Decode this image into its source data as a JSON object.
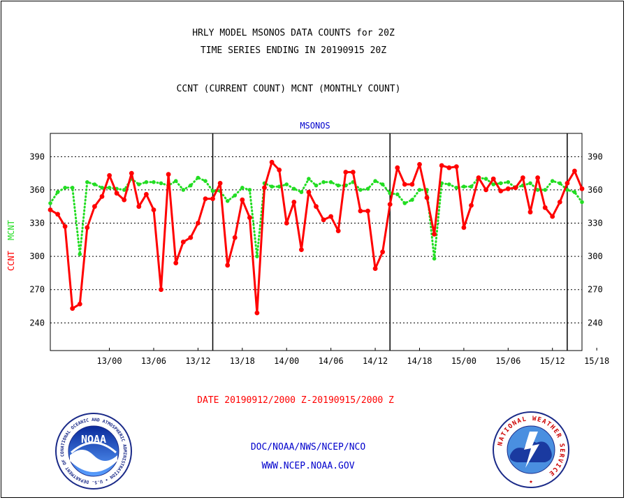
{
  "header": {
    "line1": "HRLY MODEL MSONOS DATA COUNTS for 20Z",
    "line2": "TIME SERIES ENDING IN 20190915 20Z",
    "line3": "CCNT (CURRENT COUNT) MCNT (MONTHLY COUNT)"
  },
  "footer": {
    "date_range": "DATE 20190912/2000 Z-20190915/2000 Z",
    "org": "DOC/NOAA/NWS/NCEP/NCO",
    "url": "WWW.NCEP.NOAA.GOV"
  },
  "logos": {
    "noaa_text": "NOAA",
    "noaa_ring": "NATIONAL OCEANIC AND ATMOSPHERIC ADMINISTRATION • U.S. DEPARTMENT OF COMMERCE",
    "nws_ring": "NATIONAL WEATHER SERVICE"
  },
  "colors": {
    "ccnt": "#ff0000",
    "mcnt": "#22dd22",
    "title": "#0000cc",
    "grid": "#000000"
  },
  "chart_data": {
    "type": "line",
    "title": "MSONOS",
    "ylabel_left": [
      "CCNT",
      "MCNT"
    ],
    "ylim": [
      215,
      411
    ],
    "yticks": [
      240,
      270,
      300,
      330,
      360,
      390
    ],
    "grid": "horizontal dotted",
    "xlim": [
      -4,
      68
    ],
    "xticks": [
      {
        "x": 4,
        "label": "13/00"
      },
      {
        "x": 10,
        "label": "13/06"
      },
      {
        "x": 16,
        "label": "13/12"
      },
      {
        "x": 22,
        "label": "13/18"
      },
      {
        "x": 28,
        "label": "14/00"
      },
      {
        "x": 34,
        "label": "14/06"
      },
      {
        "x": 40,
        "label": "14/12"
      },
      {
        "x": 46,
        "label": "14/18"
      },
      {
        "x": 52,
        "label": "15/00"
      },
      {
        "x": 58,
        "label": "15/06"
      },
      {
        "x": 64,
        "label": "15/12"
      },
      {
        "x": 70,
        "label": "15/18"
      }
    ],
    "day_dividers": [
      18,
      42,
      66
    ],
    "x_start": -4,
    "series": [
      {
        "name": "CCNT",
        "style": "solid",
        "values": [
          342,
          338,
          327,
          253,
          257,
          326,
          345,
          354,
          373,
          357,
          351,
          375,
          345,
          356,
          342,
          270,
          374,
          294,
          313,
          317,
          330,
          352,
          352,
          366,
          292,
          317,
          351,
          335,
          249,
          362,
          385,
          378,
          330,
          349,
          306,
          358,
          345,
          333,
          336,
          323,
          376,
          376,
          341,
          341,
          289,
          304,
          347,
          380,
          365,
          365,
          383,
          353,
          320,
          382,
          380,
          381,
          326,
          346,
          371,
          360,
          370,
          359,
          361,
          362,
          371,
          340,
          371,
          344,
          336,
          349,
          366,
          377,
          361
        ]
      },
      {
        "name": "MCNT",
        "style": "dotted",
        "values": [
          348,
          358,
          362,
          362,
          302,
          367,
          365,
          362,
          362,
          361,
          360,
          370,
          365,
          367,
          367,
          366,
          364,
          368,
          360,
          364,
          371,
          368,
          359,
          359,
          350,
          355,
          362,
          360,
          300,
          366,
          363,
          363,
          365,
          361,
          358,
          370,
          364,
          367,
          367,
          364,
          364,
          367,
          360,
          361,
          368,
          365,
          357,
          356,
          348,
          351,
          360,
          360,
          298,
          366,
          365,
          362,
          363,
          363,
          371,
          370,
          365,
          366,
          367,
          362,
          364,
          366,
          360,
          360,
          368,
          366,
          360,
          358,
          349
        ]
      }
    ]
  }
}
